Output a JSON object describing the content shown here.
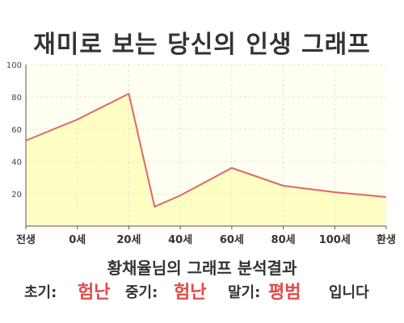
{
  "title": "재미로 보는 당신의 인생 그래프",
  "result": {
    "text": "황채율님의 그래프 분석결과",
    "early_label": "초기:",
    "early_value": "험난",
    "mid_label": "중기:",
    "mid_value": "험난",
    "late_label": "말기:",
    "late_value": "평범",
    "suffix": "입니다"
  },
  "colors": {
    "line": "#e06666",
    "fill": "#ffffc4",
    "plot_bg": "#fffff2",
    "grid": "#e5e5c8",
    "axis": "#555555",
    "accent": "#e34a4a"
  },
  "chart_data": {
    "type": "area",
    "x": [
      0,
      1,
      2,
      2.5,
      3,
      4,
      5,
      6,
      7
    ],
    "x_tick_labels": [
      "전생",
      "0세",
      "20세",
      "40세",
      "60세",
      "80세",
      "100세",
      "환생"
    ],
    "x_tick_positions": [
      0,
      1,
      2,
      3,
      4,
      5,
      6,
      7
    ],
    "values": [
      53,
      66,
      82,
      12,
      19,
      36,
      25,
      21,
      18
    ],
    "xlim": [
      0,
      7
    ],
    "ylim": [
      0,
      100
    ],
    "y_ticks": [
      20,
      40,
      60,
      80,
      100
    ],
    "grid": true
  }
}
